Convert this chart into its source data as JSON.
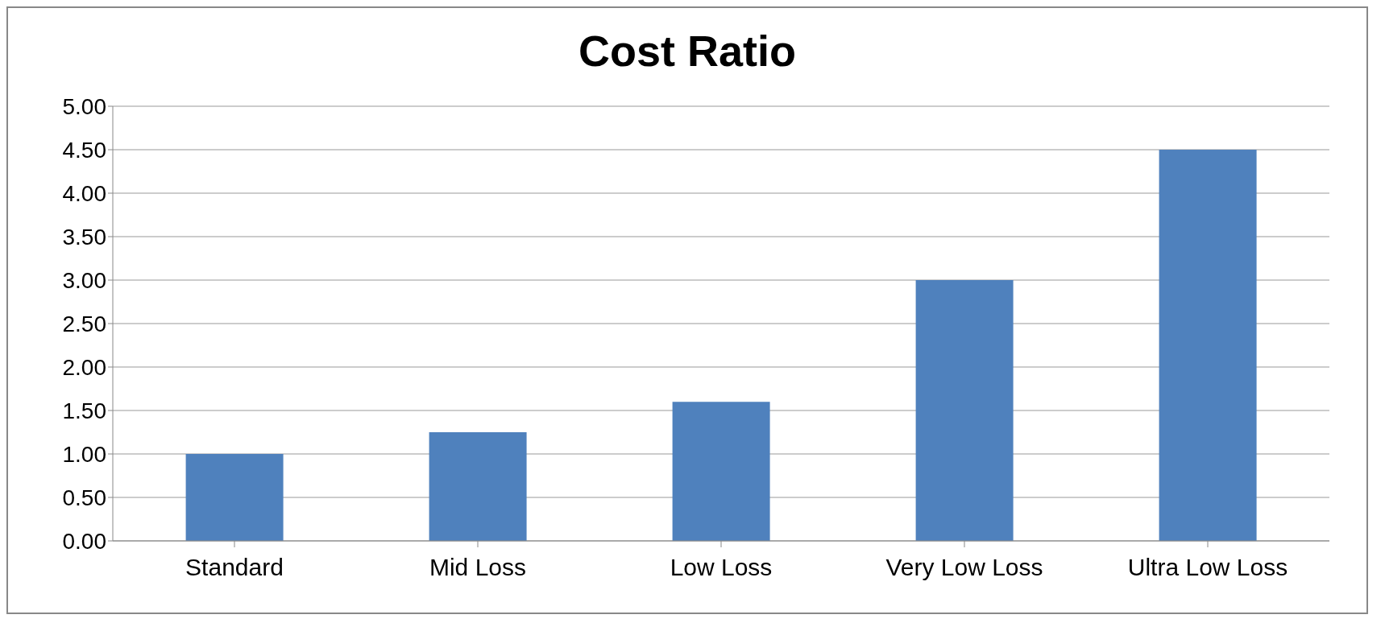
{
  "chart_data": {
    "type": "bar",
    "title": "Cost Ratio",
    "categories": [
      "Standard",
      "Mid Loss",
      "Low Loss",
      "Very Low Loss",
      "Ultra Low Loss"
    ],
    "values": [
      1.0,
      1.25,
      1.6,
      3.0,
      4.5
    ],
    "color": "#4f81bd",
    "ylim": [
      0,
      5
    ],
    "yticks": [
      {
        "value": 0,
        "label": "0.00"
      },
      {
        "value": 0.5,
        "label": "0.50"
      },
      {
        "value": 1,
        "label": "1.00"
      },
      {
        "value": 1.5,
        "label": "1.50"
      },
      {
        "value": 2,
        "label": "2.00"
      },
      {
        "value": 2.5,
        "label": "2.50"
      },
      {
        "value": 3,
        "label": "3.00"
      },
      {
        "value": 3.5,
        "label": "3.50"
      },
      {
        "value": 4,
        "label": "4.00"
      },
      {
        "value": 4.5,
        "label": "4.50"
      },
      {
        "value": 5,
        "label": "5.00"
      }
    ],
    "grid": "y"
  }
}
